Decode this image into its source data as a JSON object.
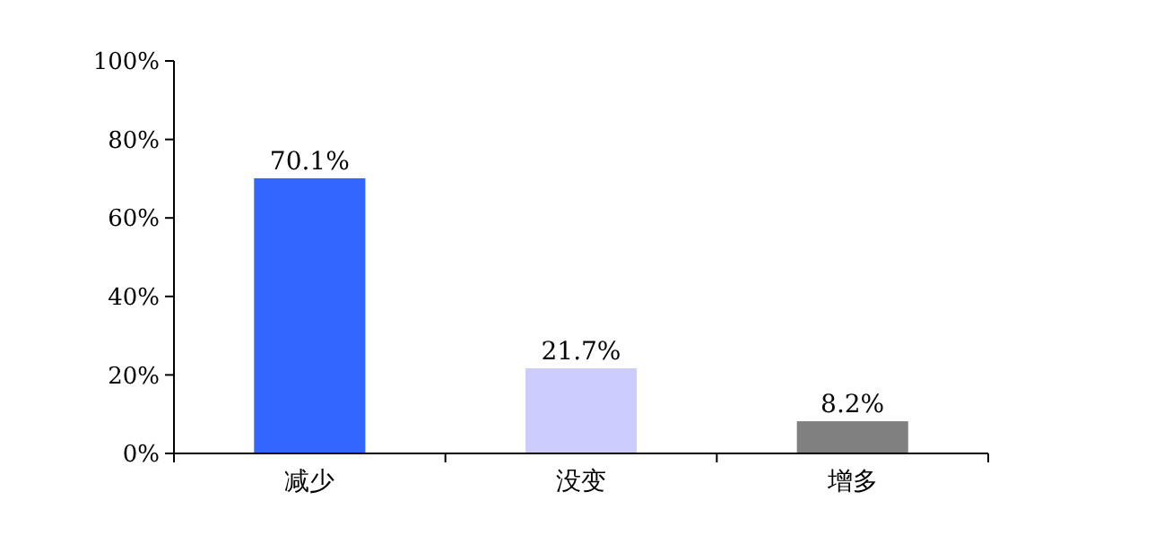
{
  "chart_data": {
    "type": "bar",
    "categories": [
      "减少",
      "没变",
      "增多"
    ],
    "values": [
      70.1,
      21.7,
      8.2
    ],
    "colors": [
      "#3366ff",
      "#ccccff",
      "#808080"
    ],
    "value_labels": [
      "70.1%",
      "21.7%",
      "8.2%"
    ],
    "ylim": [
      0,
      100
    ],
    "yticks": [
      {
        "value": 0,
        "label": "0%"
      },
      {
        "value": 20,
        "label": "20%"
      },
      {
        "value": 40,
        "label": "40%"
      },
      {
        "value": 60,
        "label": "60%"
      },
      {
        "value": 80,
        "label": "80%"
      },
      {
        "value": 100,
        "label": "100%"
      }
    ],
    "grid": false
  }
}
